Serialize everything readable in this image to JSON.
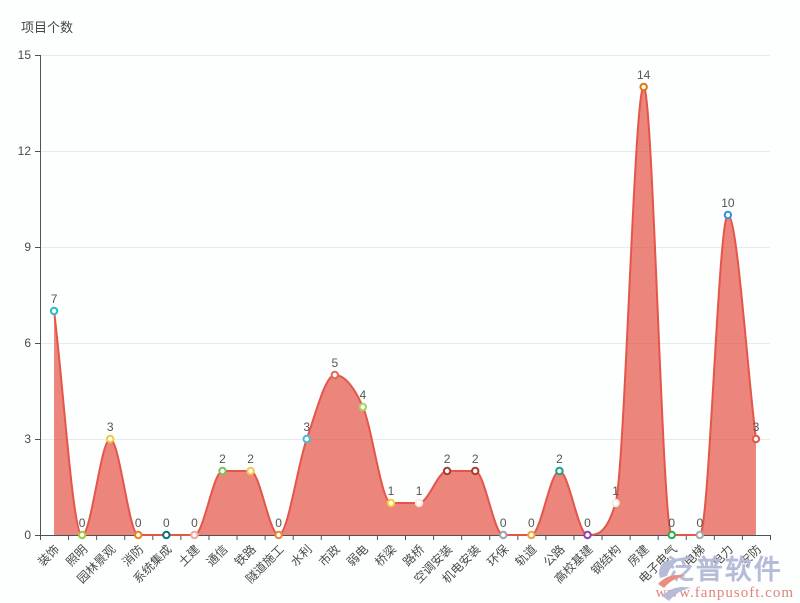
{
  "chart_data": {
    "type": "area",
    "title": "项目个数",
    "categories": [
      "装饰",
      "照明",
      "园林景观",
      "消防",
      "系统集成",
      "土建",
      "通信",
      "铁路",
      "隧道施工",
      "水利",
      "市政",
      "弱电",
      "桥梁",
      "路桥",
      "空调安装",
      "机电安装",
      "环保",
      "轨道",
      "公路",
      "高校基建",
      "钢结构",
      "房建",
      "电子电气",
      "电梯",
      "电力",
      "安防"
    ],
    "values": [
      7,
      0,
      3,
      0,
      0,
      0,
      2,
      2,
      0,
      3,
      5,
      4,
      1,
      1,
      2,
      2,
      0,
      0,
      2,
      0,
      1,
      14,
      0,
      0,
      10,
      3
    ],
    "point_colors": [
      "#29bdc6",
      "#a3c63a",
      "#f4c93e",
      "#ef7f1a",
      "#0f7078",
      "#f4a79d",
      "#7dc35b",
      "#f4c84e",
      "#ef8435",
      "#4ab8dc",
      "#e0685c",
      "#a6d35f",
      "#f8cf33",
      "#fbe9da",
      "#aa3b31",
      "#aa3b31",
      "#9fa4a8",
      "#f2a33a",
      "#19a38c",
      "#8c42ae",
      "#f3ede3",
      "#e0760c",
      "#2dab4f",
      "#a2a8ac",
      "#3096d9",
      "#e2564b"
    ],
    "xlabel": "",
    "ylabel": "项目个数",
    "ylim": [
      0,
      15
    ],
    "y_ticks": [
      0,
      3,
      6,
      9,
      12,
      15
    ],
    "legend_position": "none",
    "grid": "horizontal",
    "line_color": "#e4564a",
    "fill_color": "rgba(228,86,74,0.72)",
    "grid_color": "#e5eaf3",
    "axis_color": "#4d535c",
    "tick_label_color": "#4a4a4a",
    "value_label_color": "#555555"
  },
  "watermark": {
    "brand": "泛普软件",
    "url": "www.fanpusoft.com",
    "brand_color": "#b6bbd8",
    "url_color": "#e0857b",
    "logo_swoosh_color": "#e98d80"
  }
}
